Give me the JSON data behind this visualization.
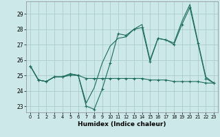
{
  "xlabel": "Humidex (Indice chaleur)",
  "background_color": "#cce8e8",
  "line_color": "#1a6b5a",
  "grid_color": "#aacccc",
  "xlim": [
    -0.5,
    23.5
  ],
  "ylim": [
    22.6,
    29.8
  ],
  "yticks": [
    23,
    24,
    25,
    26,
    27,
    28,
    29
  ],
  "xticks": [
    0,
    1,
    2,
    3,
    4,
    5,
    6,
    7,
    8,
    9,
    10,
    11,
    12,
    13,
    14,
    15,
    16,
    17,
    18,
    19,
    20,
    21,
    22,
    23
  ],
  "series1_markers": [
    25.6,
    24.7,
    24.6,
    24.9,
    24.9,
    25.1,
    25.0,
    23.0,
    22.8,
    24.1,
    25.8,
    27.7,
    27.6,
    28.0,
    28.1,
    25.9,
    27.4,
    27.3,
    27.0,
    28.3,
    29.4,
    27.1,
    24.8,
    24.5
  ],
  "series2_smooth": [
    25.6,
    24.7,
    24.6,
    24.9,
    24.9,
    25.1,
    25.0,
    23.2,
    24.2,
    25.8,
    26.9,
    27.4,
    27.5,
    28.0,
    28.3,
    26.0,
    27.4,
    27.3,
    27.1,
    28.5,
    29.6,
    27.2,
    24.9,
    24.5
  ],
  "series3_flat": [
    25.6,
    24.7,
    24.6,
    24.9,
    24.9,
    25.0,
    25.0,
    24.8,
    24.8,
    24.8,
    24.8,
    24.8,
    24.8,
    24.8,
    24.8,
    24.7,
    24.7,
    24.7,
    24.6,
    24.6,
    24.6,
    24.6,
    24.5,
    24.5
  ]
}
